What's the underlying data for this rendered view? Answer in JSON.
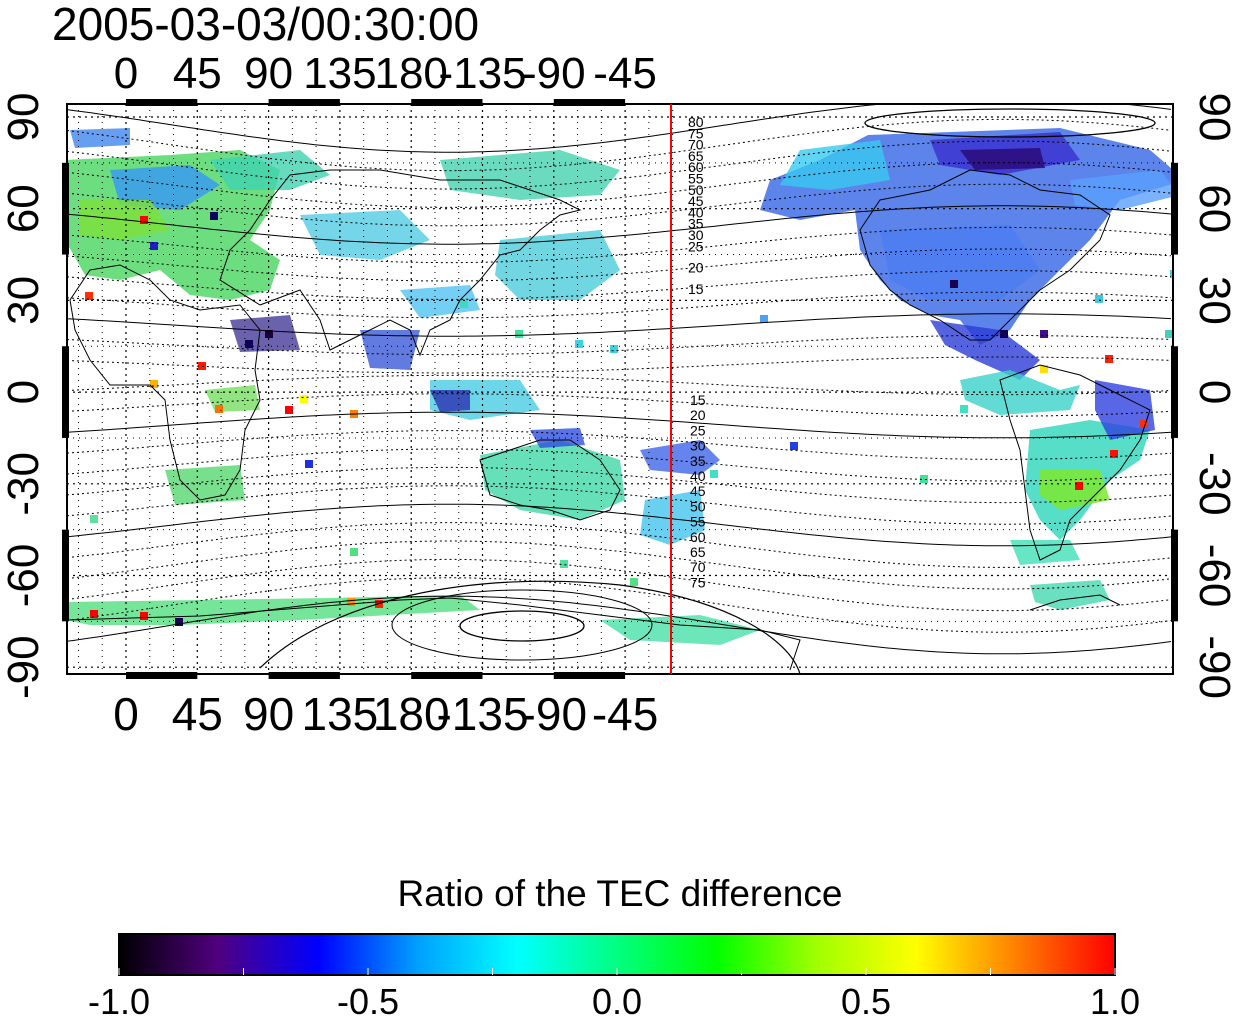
{
  "title": "2005-03-03/00:30:00",
  "map": {
    "top_lon_labels": [
      "0",
      "45",
      "90",
      "135",
      "180",
      "-135",
      "-90",
      "-45"
    ],
    "bottom_lon_labels": [
      "0",
      "45",
      "90",
      "135",
      "180",
      "-135",
      "-90",
      "-45"
    ],
    "left_lat_labels": [
      "90",
      "60",
      "30",
      "0",
      "-30",
      "-60",
      "-90"
    ],
    "right_lat_labels": [
      "90",
      "60",
      "30",
      "0",
      "-30",
      "-60",
      "-90"
    ],
    "meridian_line_color": "#ff0000",
    "contour_labels_north": [
      "80",
      "75",
      "70",
      "65",
      "60",
      "55",
      "50",
      "45",
      "40",
      "35",
      "30",
      "25",
      "20",
      "15"
    ],
    "contour_labels_south": [
      "15",
      "20",
      "25",
      "30",
      "35",
      "40",
      "45",
      "50",
      "55",
      "60",
      "65",
      "70",
      "75"
    ],
    "coastline_color": "#000000"
  },
  "colorbar": {
    "title": "Ratio of the TEC difference",
    "tick_labels": [
      "-1.0",
      "-0.5",
      "0.0",
      "0.5",
      "1.0"
    ],
    "min": -1.0,
    "max": 1.0,
    "colormap": [
      "#000000",
      "#50007f",
      "#0000ff",
      "#00a0ff",
      "#00ffff",
      "#00ff80",
      "#00ff00",
      "#a0ff00",
      "#ffff00",
      "#ff8000",
      "#ff0000"
    ]
  }
}
